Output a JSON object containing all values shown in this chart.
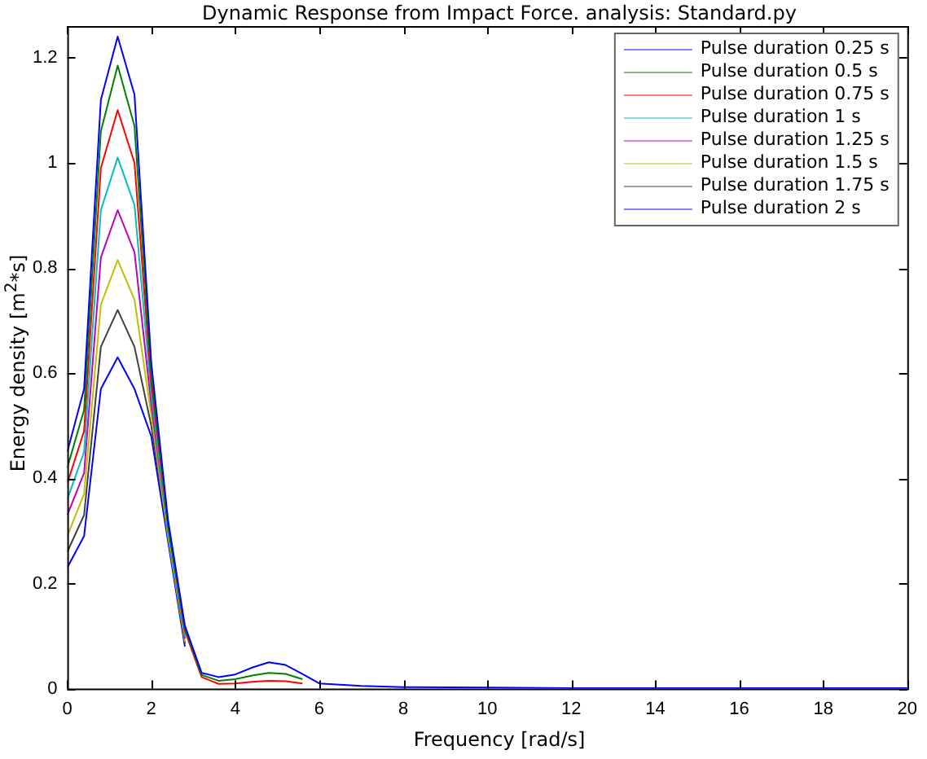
{
  "chart_data": {
    "type": "line",
    "title": "Dynamic Response from Impact Force. analysis: Standard.py",
    "xlabel": "Frequency [rad/s]",
    "ylabel": "Energy density [m$^{2}$*s]",
    "x": [
      0,
      0.4,
      0.8,
      1.2,
      1.6,
      2.0,
      2.4,
      2.8,
      3.2,
      3.6,
      4.0,
      4.4,
      4.8,
      5.2,
      5.6,
      6.0,
      7,
      8,
      10,
      12,
      14,
      16,
      18,
      20
    ],
    "xlim": [
      0,
      20
    ],
    "xticks": [
      0,
      2,
      4,
      6,
      8,
      10,
      12,
      14,
      16,
      18,
      20
    ],
    "ylim": [
      0,
      1.26
    ],
    "yticks": [
      0,
      0.2,
      0.4,
      0.6,
      0.8,
      1,
      1.2
    ],
    "grid": false,
    "legend": "top right",
    "marker": "none",
    "line_style": "solid",
    "series": [
      {
        "name": "Pulse duration 0.25 s",
        "color": "#0000ff",
        "values": [
          0.45,
          0.57,
          1.12,
          1.24,
          1.13,
          0.62,
          0.32,
          0.12,
          0.03,
          0.022,
          0.027,
          0.04,
          0.05,
          0.045,
          0.028,
          0.01,
          0.005,
          0.003,
          0.002,
          0.001,
          0.001,
          0.001,
          0.001,
          0.001
        ]
      },
      {
        "name": "Pulse duration 0.5 s",
        "color": "#008000",
        "values": [
          0.42,
          0.53,
          1.06,
          1.185,
          1.07,
          0.6,
          0.31,
          0.115,
          0.026,
          0.015,
          0.018,
          0.025,
          0.03,
          0.028,
          0.018,
          null,
          null,
          null,
          null,
          null,
          null,
          null,
          null,
          null
        ]
      },
      {
        "name": "Pulse duration 0.75 s",
        "color": "#ff0000",
        "values": [
          0.39,
          0.49,
          0.99,
          1.1,
          1.0,
          0.58,
          0.31,
          0.11,
          0.022,
          0.009,
          0.01,
          0.013,
          0.015,
          0.014,
          0.01,
          null,
          null,
          null,
          null,
          null,
          null,
          null,
          null,
          null
        ]
      },
      {
        "name": "Pulse duration 1 s",
        "color": "#00bfbf",
        "values": [
          0.36,
          0.45,
          0.91,
          1.01,
          0.92,
          0.56,
          0.3,
          0.1,
          null,
          null,
          null,
          null,
          null,
          null,
          null,
          null,
          null,
          null,
          null,
          null,
          null,
          null,
          null,
          null
        ]
      },
      {
        "name": "Pulse duration 1.25 s",
        "color": "#bf00bf",
        "values": [
          0.33,
          0.41,
          0.82,
          0.91,
          0.83,
          0.54,
          0.3,
          0.095,
          null,
          null,
          null,
          null,
          null,
          null,
          null,
          null,
          null,
          null,
          null,
          null,
          null,
          null,
          null,
          null
        ]
      },
      {
        "name": "Pulse duration 1.5 s",
        "color": "#bfbf00",
        "values": [
          0.29,
          0.37,
          0.73,
          0.815,
          0.74,
          0.52,
          0.29,
          0.09,
          null,
          null,
          null,
          null,
          null,
          null,
          null,
          null,
          null,
          null,
          null,
          null,
          null,
          null,
          null,
          null
        ]
      },
      {
        "name": "Pulse duration 1.75 s",
        "color": "#404040",
        "values": [
          0.26,
          0.33,
          0.65,
          0.72,
          0.65,
          0.5,
          0.29,
          0.085,
          null,
          null,
          null,
          null,
          null,
          null,
          null,
          null,
          null,
          null,
          null,
          null,
          null,
          null,
          null,
          null
        ]
      },
      {
        "name": "Pulse duration 2 s",
        "color": "#0000ff",
        "values": [
          0.23,
          0.29,
          0.57,
          0.63,
          0.57,
          0.48,
          0.28,
          0.08,
          null,
          null,
          null,
          null,
          null,
          null,
          null,
          null,
          null,
          null,
          null,
          null,
          null,
          null,
          null,
          null
        ]
      }
    ]
  }
}
